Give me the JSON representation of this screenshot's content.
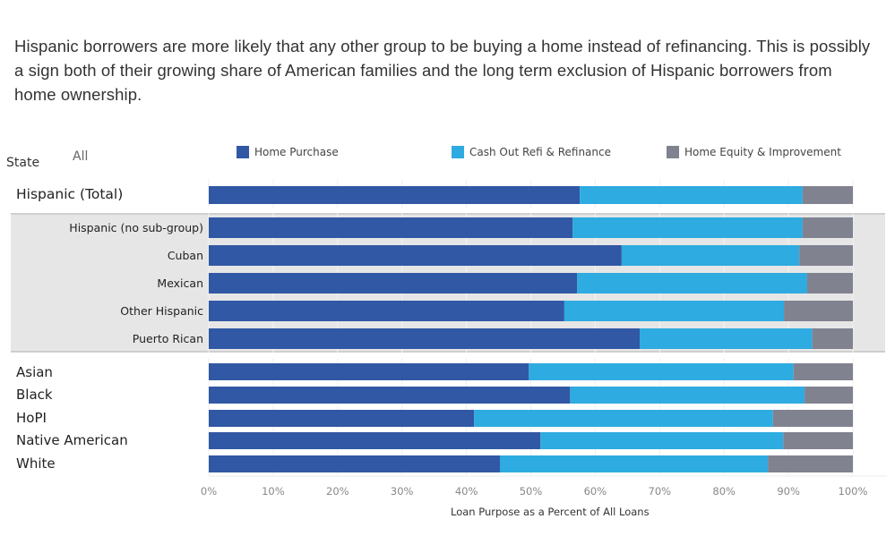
{
  "headline": "Hispanic borrowers are more likely that any other group to be buying a home instead of refinancing. This is possibly a sign both of their growing share of American families and the long term exclusion of Hispanic borrowers from home ownership.",
  "filter": {
    "label": "State",
    "value": "All"
  },
  "colors": {
    "home_purchase": "#3158a4",
    "refinance": "#2eabe0",
    "home_equity": "#818290",
    "group_bg": "#e6e6e6"
  },
  "chart_data": {
    "type": "bar",
    "orientation": "horizontal",
    "stacked": true,
    "title": "",
    "xlabel": "Loan Purpose as a Percent of All Loans",
    "ylabel": "",
    "xlim": [
      0,
      100
    ],
    "x_ticks": [
      "0%",
      "10%",
      "20%",
      "30%",
      "40%",
      "50%",
      "60%",
      "70%",
      "80%",
      "90%",
      "100%"
    ],
    "grid": true,
    "legend_position": "top",
    "legend": [
      "Home Purchase",
      "Cash Out Refi & Refinance",
      "Home Equity & Improvement"
    ],
    "categories": [
      "Hispanic (Total)",
      "Hispanic (no sub-group)",
      "Cuban",
      "Mexican",
      "Other Hispanic",
      "Puerto Rican",
      "Asian",
      "Black",
      "HoPI",
      "Native American",
      "White"
    ],
    "category_groups": [
      "total",
      "sub",
      "sub",
      "sub",
      "sub",
      "sub",
      "main",
      "main",
      "main",
      "main",
      "main"
    ],
    "series": [
      {
        "name": "Home Purchase",
        "values": [
          57.6,
          56.5,
          64.1,
          57.2,
          55.2,
          66.9,
          49.7,
          56.1,
          41.2,
          51.5,
          45.2
        ]
      },
      {
        "name": "Cash Out Refi & Refinance",
        "values": [
          34.6,
          35.7,
          27.6,
          35.7,
          34.1,
          26.8,
          41.1,
          36.4,
          46.4,
          37.7,
          41.6
        ]
      },
      {
        "name": "Home Equity & Improvement",
        "values": [
          7.8,
          7.8,
          8.3,
          7.1,
          10.7,
          6.3,
          9.2,
          7.5,
          12.4,
          10.8,
          13.2
        ]
      }
    ]
  }
}
